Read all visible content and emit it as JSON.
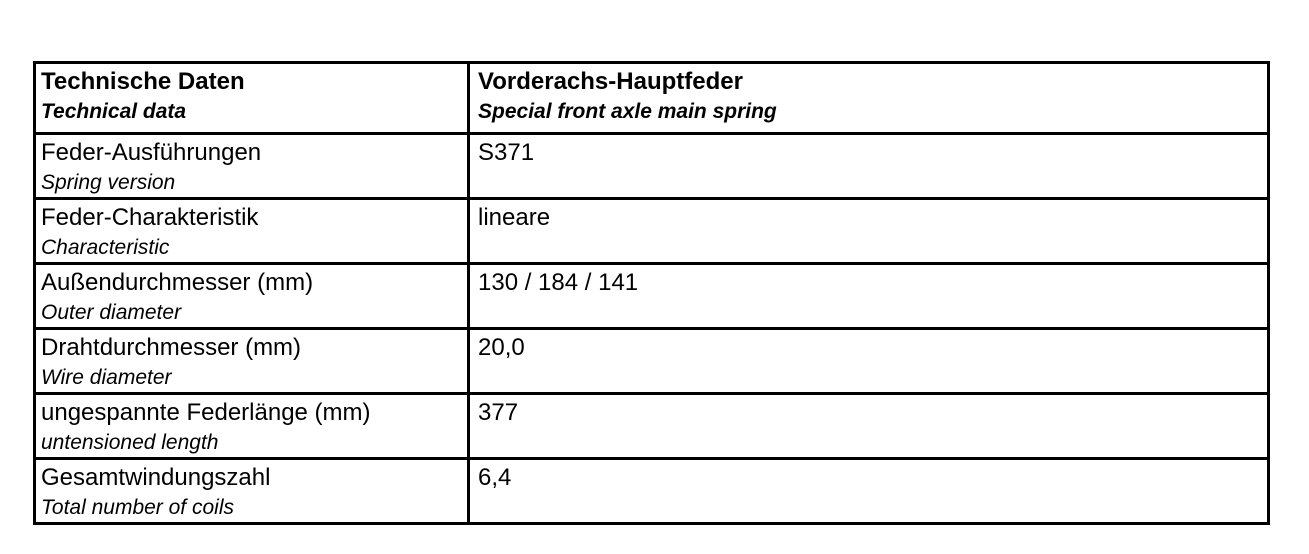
{
  "table": {
    "header": {
      "col1_de": "Technische Daten",
      "col1_en": "Technical data",
      "col2_de": "Vorderachs-Hauptfeder",
      "col2_en": "Special front axle main spring"
    },
    "rows": [
      {
        "label_de": "Feder-Ausführungen",
        "label_en": "Spring version",
        "value": "S371"
      },
      {
        "label_de": "Feder-Charakteristik",
        "label_en": "Characteristic",
        "value": "lineare"
      },
      {
        "label_de": "Außendurchmesser (mm)",
        "label_en": "Outer diameter",
        "value": "130 / 184 / 141"
      },
      {
        "label_de": "Drahtdurchmesser (mm)",
        "label_en": "Wire diameter",
        "value": "20,0"
      },
      {
        "label_de": "ungespannte Federlänge (mm)",
        "label_en": "untensioned length",
        "value": "377"
      },
      {
        "label_de": "Gesamtwindungszahl",
        "label_en": "Total number of coils",
        "value": "6,4"
      }
    ],
    "colors": {
      "border": "#000000",
      "text": "#000000",
      "background": "#ffffff"
    }
  }
}
